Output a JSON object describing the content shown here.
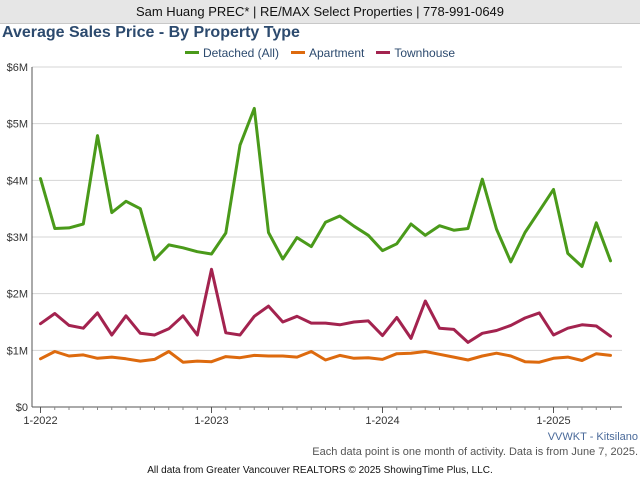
{
  "header": {
    "agent_line": "Sam Huang PREC* | RE/MAX Select Properties | 778-991-0649"
  },
  "chart_data": {
    "type": "line",
    "title": "Average Sales Price - By Property Type",
    "xlabel": "",
    "ylabel": "",
    "ylim": [
      0,
      6000000
    ],
    "yticks": [
      {
        "value": 0,
        "label": "$0"
      },
      {
        "value": 1000000,
        "label": "$1M"
      },
      {
        "value": 2000000,
        "label": "$2M"
      },
      {
        "value": 3000000,
        "label": "$3M"
      },
      {
        "value": 4000000,
        "label": "$4M"
      },
      {
        "value": 5000000,
        "label": "$5M"
      },
      {
        "value": 6000000,
        "label": "$6M"
      }
    ],
    "xticks": [
      {
        "value": "2022-01",
        "label": "1-2022"
      },
      {
        "value": "2023-01",
        "label": "1-2023"
      },
      {
        "value": "2024-01",
        "label": "1-2024"
      },
      {
        "value": "2025-01",
        "label": "1-2025"
      }
    ],
    "x": [
      "2022-01",
      "2022-02",
      "2022-03",
      "2022-04",
      "2022-05",
      "2022-06",
      "2022-07",
      "2022-08",
      "2022-09",
      "2022-10",
      "2022-11",
      "2022-12",
      "2023-01",
      "2023-02",
      "2023-03",
      "2023-04",
      "2023-05",
      "2023-06",
      "2023-07",
      "2023-08",
      "2023-09",
      "2023-10",
      "2023-11",
      "2023-12",
      "2024-01",
      "2024-02",
      "2024-03",
      "2024-04",
      "2024-05",
      "2024-06",
      "2024-07",
      "2024-08",
      "2024-09",
      "2024-10",
      "2024-11",
      "2024-12",
      "2025-01",
      "2025-02",
      "2025-03",
      "2025-04",
      "2025-05"
    ],
    "grid": true,
    "legend_position": "top-center",
    "series": [
      {
        "name": "Detached (All)",
        "color": "#4a9a1a",
        "values": [
          4030000,
          3150000,
          3160000,
          3230000,
          4790000,
          3430000,
          3630000,
          3500000,
          2600000,
          2860000,
          2810000,
          2740000,
          2700000,
          3070000,
          4620000,
          5270000,
          3080000,
          2610000,
          2990000,
          2830000,
          3260000,
          3370000,
          3190000,
          3030000,
          2760000,
          2880000,
          3230000,
          3030000,
          3200000,
          3120000,
          3150000,
          4020000,
          3140000,
          2560000,
          3080000,
          3460000,
          3840000,
          2710000,
          2480000,
          3250000,
          2580000
        ]
      },
      {
        "name": "Apartment",
        "color": "#dd6a0e",
        "values": [
          850000,
          980000,
          900000,
          920000,
          860000,
          880000,
          850000,
          810000,
          840000,
          980000,
          790000,
          810000,
          800000,
          890000,
          870000,
          910000,
          900000,
          900000,
          880000,
          980000,
          830000,
          910000,
          860000,
          870000,
          840000,
          940000,
          950000,
          980000,
          930000,
          880000,
          830000,
          900000,
          950000,
          900000,
          800000,
          790000,
          860000,
          880000,
          820000,
          940000,
          910000
        ]
      },
      {
        "name": "Townhouse",
        "color": "#a3234f",
        "values": [
          1470000,
          1650000,
          1440000,
          1390000,
          1660000,
          1270000,
          1610000,
          1300000,
          1270000,
          1380000,
          1610000,
          1270000,
          2430000,
          1310000,
          1270000,
          1600000,
          1780000,
          1500000,
          1600000,
          1480000,
          1480000,
          1450000,
          1500000,
          1520000,
          1260000,
          1580000,
          1210000,
          1870000,
          1390000,
          1370000,
          1140000,
          1300000,
          1350000,
          1440000,
          1570000,
          1660000,
          1270000,
          1390000,
          1450000,
          1430000,
          1250000
        ]
      }
    ]
  },
  "footer": {
    "area_label": "VVWKT - Kitsilano",
    "activity_note": "Each data point is one month of activity. Data is from June 7, 2025.",
    "source_note": "All data from Greater Vancouver REALTORS © 2025 ShowingTime Plus, LLC."
  }
}
